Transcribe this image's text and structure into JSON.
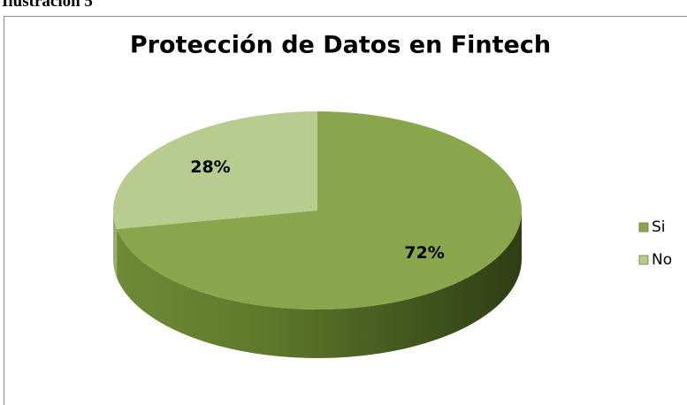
{
  "caption": "Ilustración 5",
  "chart_data": {
    "type": "pie",
    "title": "Protección de Datos en Fintech",
    "categories": [
      "Si",
      "No"
    ],
    "values": [
      72,
      28
    ],
    "value_labels": [
      "72%",
      "28%"
    ],
    "colors": [
      "#8aa64c",
      "#b9cc8f"
    ],
    "legend": "right"
  }
}
